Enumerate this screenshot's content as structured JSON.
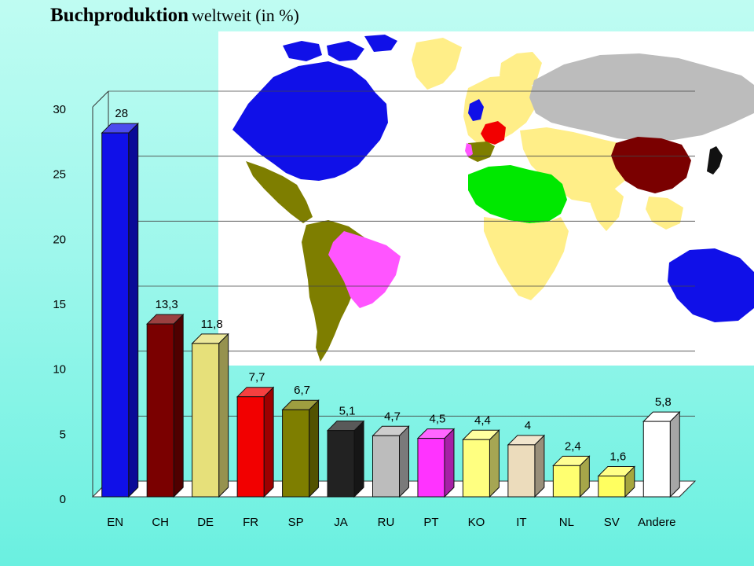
{
  "title": {
    "main": "Buchproduktion",
    "sub": "weltweit (in %)"
  },
  "chart_data": {
    "type": "bar",
    "title": "Buchproduktion weltweit (in %)",
    "xlabel": "",
    "ylabel": "",
    "ylim": [
      0,
      30
    ],
    "yticks": [
      0,
      5,
      10,
      15,
      20,
      25,
      30
    ],
    "categories": [
      "EN",
      "CH",
      "DE",
      "FR",
      "SP",
      "JA",
      "RU",
      "PT",
      "KO",
      "IT",
      "NL",
      "SV",
      "Andere"
    ],
    "values": [
      28,
      13.3,
      11.8,
      7.7,
      6.7,
      5.1,
      4.7,
      4.5,
      4.4,
      4,
      2.4,
      1.6,
      5.8
    ],
    "value_labels": [
      "28",
      "13,3",
      "11,8",
      "7,7",
      "6,7",
      "5,1",
      "4,7",
      "4,5",
      "4,4",
      "4",
      "2,4",
      "1,6",
      "5,8"
    ],
    "colors": [
      "#1010e8",
      "#7a0000",
      "#e6e07a",
      "#f20000",
      "#7e7e00",
      "#222222",
      "#bcbcbc",
      "#ff33ff",
      "#ffff80",
      "#ecdcbc",
      "#ffff70",
      "#ffff60",
      "#ffffff"
    ],
    "grid": true
  },
  "map": {
    "colors": {
      "ocean": "#ffffff",
      "americas_north": "#1010e8",
      "americas_south": "#7e7e00",
      "brazil": "#ff55ff",
      "arab": "#00e800",
      "africa": "#ffee88",
      "russia": "#bcbcbc",
      "china": "#7a0000",
      "japan": "#111111",
      "france": "#f20000",
      "australia": "#1010e8"
    }
  }
}
